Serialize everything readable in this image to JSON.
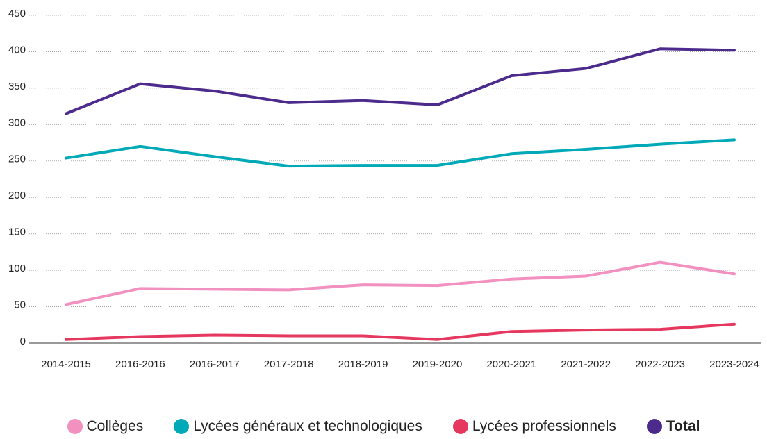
{
  "chart_data": {
    "type": "line",
    "categories": [
      "2014-2015",
      "2016-2016",
      "2016-2017",
      "2017-2018",
      "2018-2019",
      "2019-2020",
      "2020-2021",
      "2021-2022",
      "2022-2023",
      "2023-2024"
    ],
    "series": [
      {
        "name": "Collèges",
        "color": "#f291c0",
        "values": [
          53,
          75,
          74,
          73,
          80,
          79,
          88,
          92,
          111,
          95
        ]
      },
      {
        "name": "Lycées généraux et technologiques",
        "color": "#00a9b7",
        "values": [
          254,
          270,
          256,
          243,
          244,
          244,
          260,
          266,
          273,
          279
        ]
      },
      {
        "name": "Lycées professionnels",
        "color": "#e6385f",
        "values": [
          5,
          9,
          11,
          10,
          10,
          5,
          16,
          18,
          19,
          26
        ]
      },
      {
        "name": "Total",
        "color": "#4c2b8c",
        "values": [
          315,
          356,
          346,
          330,
          333,
          327,
          367,
          377,
          404,
          402
        ]
      }
    ],
    "ylim": [
      0,
      450
    ],
    "yticks": [
      0,
      50,
      100,
      150,
      200,
      250,
      300,
      350,
      400,
      450
    ],
    "grid": true
  }
}
